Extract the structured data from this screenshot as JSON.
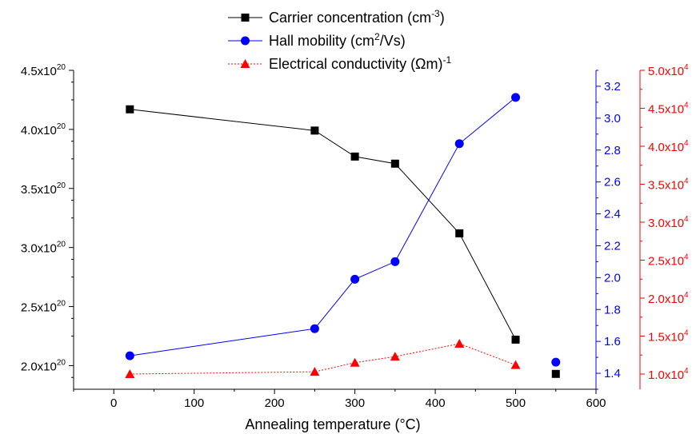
{
  "chart_data": {
    "type": "line",
    "xlabel": "Annealing temperature (°C)",
    "x_axis": {
      "range": [
        -50,
        600
      ],
      "ticks": [
        0,
        100,
        200,
        300,
        400,
        500,
        600
      ]
    },
    "x": [
      20,
      250,
      300,
      350,
      430,
      500,
      550
    ],
    "left_axis": {
      "range": [
        1.8e+20,
        4.5e+20
      ],
      "ticks": [
        {
          "value": 2e+20,
          "mantissa": "2.0x10",
          "exp": "20"
        },
        {
          "value": 2.5e+20,
          "mantissa": "2.5x10",
          "exp": "20"
        },
        {
          "value": 3e+20,
          "mantissa": "3.0x10",
          "exp": "20"
        },
        {
          "value": 3.5e+20,
          "mantissa": "3.5x10",
          "exp": "20"
        },
        {
          "value": 4e+20,
          "mantissa": "4.0x10",
          "exp": "20"
        },
        {
          "value": 4.5e+20,
          "mantissa": "4.5x10",
          "exp": "20"
        }
      ]
    },
    "right1_axis": {
      "range": [
        1.3,
        3.3
      ],
      "color": "#0000ff",
      "ticks": [
        {
          "value": 1.4,
          "label": "1.4"
        },
        {
          "value": 1.6,
          "label": "1.6"
        },
        {
          "value": 1.8,
          "label": "1.8"
        },
        {
          "value": 2.0,
          "label": "2.0"
        },
        {
          "value": 2.2,
          "label": "2.2"
        },
        {
          "value": 2.4,
          "label": "2.4"
        },
        {
          "value": 2.6,
          "label": "2.6"
        },
        {
          "value": 2.8,
          "label": "2.8"
        },
        {
          "value": 3.0,
          "label": "3.0"
        },
        {
          "value": 3.2,
          "label": "3.2"
        }
      ]
    },
    "right2_axis": {
      "range": [
        8000,
        50000
      ],
      "color": "#ff0000",
      "ticks": [
        {
          "value": 10000,
          "mantissa": "1.0x10",
          "exp": "4"
        },
        {
          "value": 15000,
          "mantissa": "1.5x10",
          "exp": "4"
        },
        {
          "value": 20000,
          "mantissa": "2.0x10",
          "exp": "4"
        },
        {
          "value": 25000,
          "mantissa": "2.5x10",
          "exp": "4"
        },
        {
          "value": 30000,
          "mantissa": "3.0x10",
          "exp": "4"
        },
        {
          "value": 35000,
          "mantissa": "3.5x10",
          "exp": "4"
        },
        {
          "value": 40000,
          "mantissa": "4.0x10",
          "exp": "4"
        },
        {
          "value": 45000,
          "mantissa": "4.5x10",
          "exp": "4"
        },
        {
          "value": 50000,
          "mantissa": "5.0x10",
          "exp": "4"
        }
      ]
    },
    "series": [
      {
        "name": "Carrier concentration (cm-3)",
        "legend_base": "Carrier concentration (cm",
        "legend_sup": "-3",
        "legend_tail": ")",
        "axis": "left",
        "color": "#000000",
        "marker": "square",
        "dash": "none",
        "x": [
          20,
          250,
          300,
          350,
          430,
          500,
          550
        ],
        "values": [
          4.17e+20,
          3.99e+20,
          3.77e+20,
          3.71e+20,
          3.12e+20,
          2.22e+20,
          1.93e+20
        ],
        "connected_points": 6
      },
      {
        "name": "Hall mobility (cm2/Vs)",
        "legend_base": "Hall mobility (cm",
        "legend_sup": "2",
        "legend_tail": "/Vs)",
        "axis": "right1",
        "color": "#0000ff",
        "marker": "circle",
        "dash": "none",
        "x": [
          20,
          250,
          300,
          350,
          430,
          500,
          550
        ],
        "values": [
          1.51,
          1.68,
          1.99,
          2.1,
          2.84,
          3.13,
          1.47
        ],
        "connected_points": 6
      },
      {
        "name": "Electrical conductivity (Ωm)-1",
        "legend_base": "Electrical conductivity (Ωm)",
        "legend_sup": "-1",
        "legend_tail": "",
        "axis": "right2",
        "color": "#ff0000",
        "marker": "triangle",
        "dash": "dotted",
        "x": [
          20,
          250,
          300,
          350,
          430,
          500
        ],
        "values": [
          10000,
          10300,
          11500,
          12300,
          14000,
          11200
        ],
        "connected_points": 6
      }
    ],
    "legend_position": "top-center",
    "grid": false
  }
}
